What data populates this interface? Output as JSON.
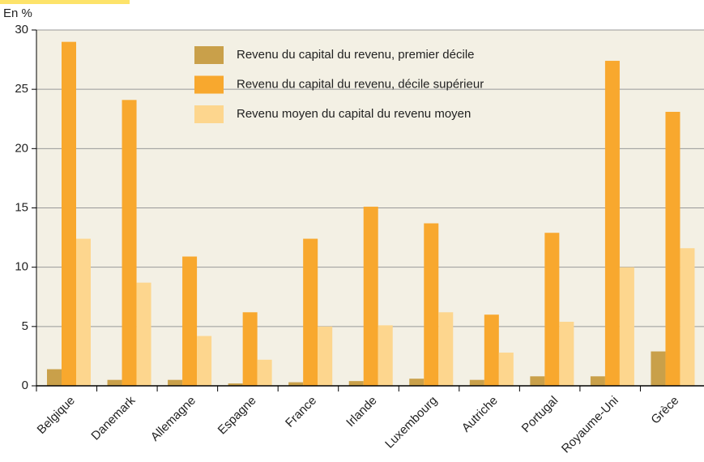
{
  "chart_data": {
    "type": "bar",
    "y_label": "En %",
    "categories": [
      "Belgique",
      "Danemark",
      "Allemagne",
      "Espagne",
      "France",
      "Irlande",
      "Luxembourg",
      "Autriche",
      "Portugal",
      "Royaume-Uni",
      "Grèce"
    ],
    "series": [
      {
        "name": "Revenu du capital du revenu, premier décile",
        "color": "#c9a04a",
        "values": [
          1.4,
          0.5,
          0.5,
          0.2,
          0.3,
          0.4,
          0.6,
          0.5,
          0.8,
          0.8,
          2.9
        ]
      },
      {
        "name": "Revenu du capital du revenu, décile supérieur",
        "color": "#f8a82e",
        "values": [
          29,
          24.1,
          10.9,
          6.2,
          12.4,
          15.1,
          13.7,
          6.0,
          12.9,
          27.4,
          23.1
        ]
      },
      {
        "name": "Revenu moyen du capital du revenu moyen",
        "color": "#fdd68e",
        "values": [
          12.4,
          8.7,
          4.2,
          2.2,
          5.0,
          5.1,
          6.2,
          2.8,
          5.4,
          10.0,
          11.6
        ]
      }
    ],
    "ylim": [
      0,
      30
    ],
    "yticks": [
      0,
      5,
      10,
      15,
      20,
      25,
      30
    ],
    "grid": true
  }
}
